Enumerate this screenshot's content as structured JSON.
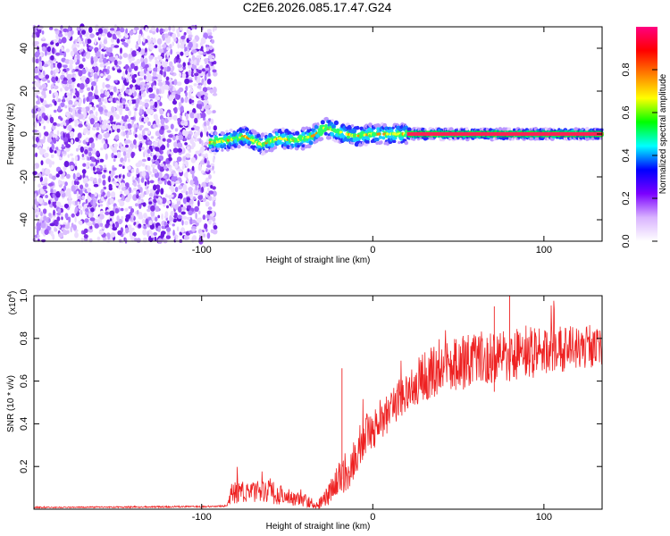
{
  "title": "C2E6.2026.085.17.47.G24",
  "chart_data": [
    {
      "type": "heatmap",
      "name": "spectrogram",
      "xlabel": "Height of straight line (km)",
      "ylabel": "Frequency (Hz)",
      "xlim": [
        -198,
        134
      ],
      "ylim": [
        -50,
        50
      ],
      "xticks": [
        -100,
        0,
        100
      ],
      "yticks": [
        -40,
        -20,
        0,
        20,
        40
      ],
      "noise_region_x": [
        -198,
        -92
      ],
      "signal_track": {
        "x": [
          -95,
          -85,
          -75,
          -65,
          -55,
          -45,
          -35,
          -28,
          -20,
          -10,
          0,
          10,
          20,
          40,
          60,
          80,
          100,
          120,
          134
        ],
        "freq": [
          -4,
          -3,
          -1,
          -5,
          -2,
          -3,
          -1,
          3,
          1,
          -1,
          0,
          0,
          0,
          0,
          0,
          0,
          0,
          0,
          0
        ]
      },
      "colorbar": {
        "label": "Normalized spectral amplitude",
        "range": [
          0,
          1
        ],
        "ticks": [
          "0.0",
          "0.2",
          "0.4",
          "0.6",
          "0.8"
        ],
        "colors": [
          "#ffffff",
          "#d9b3ff",
          "#7b00ff",
          "#0000ff",
          "#00ffff",
          "#00ff00",
          "#ffff00",
          "#ff8000",
          "#ff0000",
          "#ff0080"
        ]
      }
    },
    {
      "type": "line",
      "name": "snr",
      "xlabel": "Height of straight line (km)",
      "ylabel": "SNR (10 * v/v)",
      "scale_label": "(x10",
      "scale_exp": "4",
      "xlim": [
        -198,
        134
      ],
      "ylim": [
        0,
        1.0
      ],
      "xticks": [
        -100,
        0,
        100
      ],
      "yticks": [
        "0.2",
        "0.4",
        "0.6",
        "0.8",
        "1.0"
      ],
      "color": "#ee2222",
      "envelope": {
        "x": [
          -198,
          -100,
          -85,
          -82,
          -75,
          -60,
          -50,
          -40,
          -32,
          -25,
          -20,
          -15,
          -10,
          -5,
          0,
          10,
          20,
          30,
          40,
          60,
          80,
          100,
          120,
          134
        ],
        "mean": [
          0.008,
          0.012,
          0.015,
          0.08,
          0.08,
          0.08,
          0.06,
          0.04,
          0.02,
          0.08,
          0.14,
          0.18,
          0.26,
          0.34,
          0.38,
          0.46,
          0.56,
          0.62,
          0.66,
          0.7,
          0.72,
          0.74,
          0.76,
          0.76
        ],
        "spread": [
          0.003,
          0.004,
          0.004,
          0.06,
          0.05,
          0.06,
          0.04,
          0.03,
          0.02,
          0.06,
          0.08,
          0.1,
          0.1,
          0.1,
          0.1,
          0.1,
          0.1,
          0.12,
          0.12,
          0.13,
          0.13,
          0.12,
          0.1,
          0.1
        ]
      }
    }
  ]
}
